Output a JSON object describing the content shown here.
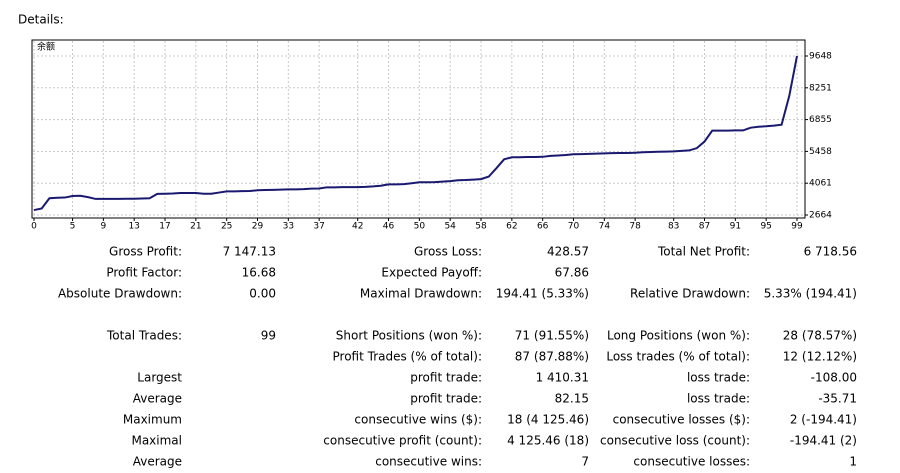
{
  "header": {
    "title": "Details:"
  },
  "chart_data": {
    "type": "line",
    "label": "余额",
    "color": "#191970",
    "grid": true,
    "xlim": [
      0,
      99
    ],
    "ylim": [
      2664,
      9648
    ],
    "xticks": [
      0,
      5,
      9,
      13,
      17,
      21,
      25,
      29,
      33,
      37,
      42,
      46,
      50,
      54,
      58,
      62,
      66,
      70,
      74,
      78,
      83,
      87,
      91,
      95,
      99
    ],
    "yticks": [
      2664,
      4061,
      5458,
      6855,
      8251,
      9648
    ],
    "x": [
      0,
      1,
      2,
      3,
      4,
      5,
      6,
      7,
      8,
      9,
      10,
      11,
      12,
      13,
      14,
      15,
      16,
      17,
      18,
      19,
      20,
      21,
      22,
      23,
      24,
      25,
      26,
      27,
      28,
      29,
      30,
      31,
      32,
      33,
      34,
      35,
      36,
      37,
      38,
      39,
      40,
      41,
      42,
      43,
      44,
      45,
      46,
      47,
      48,
      49,
      50,
      51,
      52,
      53,
      54,
      55,
      56,
      57,
      58,
      59,
      60,
      61,
      62,
      63,
      64,
      65,
      66,
      67,
      68,
      69,
      70,
      71,
      72,
      73,
      74,
      75,
      76,
      77,
      78,
      79,
      80,
      81,
      82,
      83,
      84,
      85,
      86,
      87,
      88,
      89,
      90,
      91,
      92,
      93,
      94,
      95,
      96,
      97,
      98,
      99
    ],
    "values": [
      2880,
      2950,
      3400,
      3420,
      3430,
      3500,
      3510,
      3450,
      3370,
      3370,
      3370,
      3370,
      3380,
      3380,
      3390,
      3400,
      3590,
      3600,
      3610,
      3630,
      3630,
      3630,
      3600,
      3600,
      3650,
      3700,
      3700,
      3710,
      3720,
      3750,
      3760,
      3770,
      3780,
      3790,
      3790,
      3800,
      3820,
      3830,
      3880,
      3880,
      3890,
      3890,
      3890,
      3900,
      3920,
      3950,
      4010,
      4010,
      4020,
      4060,
      4100,
      4100,
      4110,
      4130,
      4150,
      4190,
      4200,
      4220,
      4240,
      4350,
      4720,
      5110,
      5200,
      5200,
      5210,
      5210,
      5220,
      5260,
      5280,
      5300,
      5330,
      5340,
      5350,
      5360,
      5370,
      5380,
      5385,
      5390,
      5400,
      5420,
      5430,
      5440,
      5450,
      5460,
      5480,
      5500,
      5600,
      5890,
      6370,
      6370,
      6370,
      6380,
      6380,
      6500,
      6540,
      6560,
      6590,
      6630,
      7900,
      9648
    ]
  },
  "details": {
    "rows": [
      [
        "Gross Profit:",
        "7 147.13",
        "Gross Loss:",
        "428.57",
        "Total Net Profit:",
        "6 718.56"
      ],
      [
        "Profit Factor:",
        "16.68",
        "Expected Payoff:",
        "67.86",
        null,
        null
      ],
      [
        "Absolute Drawdown:",
        "0.00",
        "Maximal Drawdown:",
        "194.41 (5.33%)",
        "Relative Drawdown:",
        "5.33% (194.41)"
      ],
      [
        null,
        null,
        null,
        null,
        null,
        null
      ],
      [
        "Total Trades:",
        "99",
        "Short Positions (won %):",
        "71 (91.55%)",
        "Long Positions (won %):",
        "28 (78.57%)"
      ],
      [
        null,
        null,
        "Profit Trades (% of total):",
        "87 (87.88%)",
        "Loss trades (% of total):",
        "12 (12.12%)"
      ],
      [
        "Largest",
        null,
        "profit trade:",
        "1 410.31",
        "loss trade:",
        "-108.00"
      ],
      [
        "Average",
        null,
        "profit trade:",
        "82.15",
        "loss trade:",
        "-35.71"
      ],
      [
        "Maximum",
        null,
        "consecutive wins ($):",
        "18 (4 125.46)",
        "consecutive losses ($):",
        "2 (-194.41)"
      ],
      [
        "Maximal",
        null,
        "consecutive profit (count):",
        "4 125.46 (18)",
        "consecutive loss (count):",
        "-194.41 (2)"
      ],
      [
        "Average",
        null,
        "consecutive wins:",
        "7",
        "consecutive losses:",
        "1"
      ]
    ]
  }
}
